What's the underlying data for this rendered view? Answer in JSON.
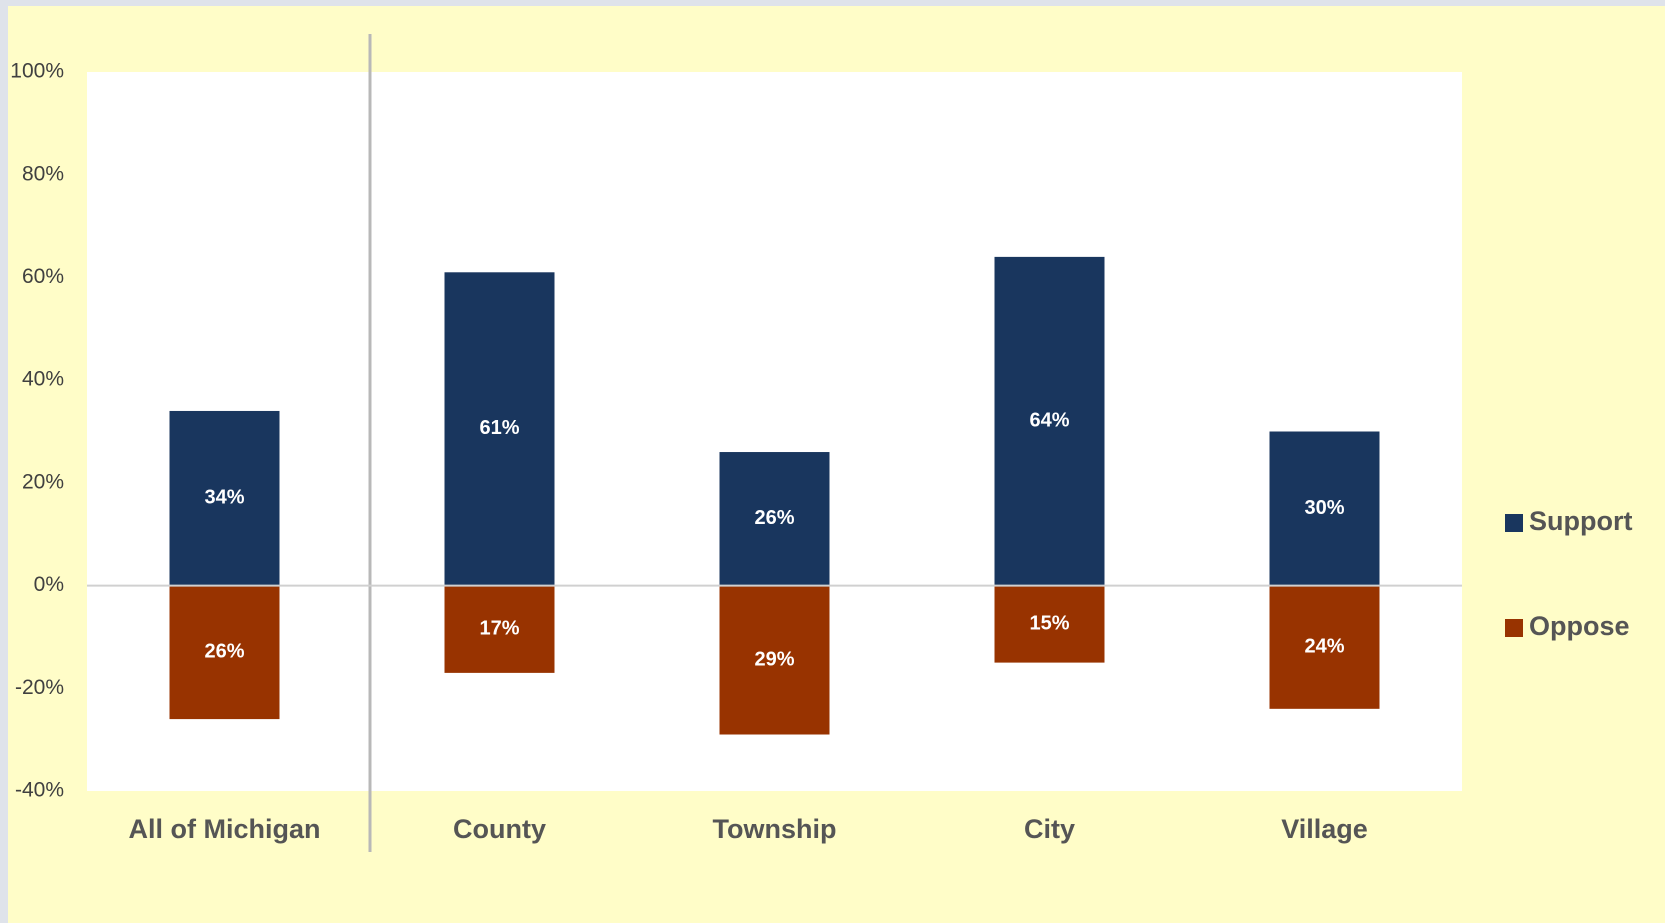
{
  "chart_data": {
    "type": "bar",
    "categories": [
      "All of Michigan",
      "County",
      "Township",
      "City",
      "Village"
    ],
    "series": [
      {
        "name": "Support",
        "color": "#19365e",
        "values": [
          34,
          61,
          26,
          64,
          30
        ],
        "value_labels": [
          "34%",
          "61%",
          "26%",
          "64%",
          "30%"
        ]
      },
      {
        "name": "Oppose",
        "color": "#983300",
        "values": [
          -26,
          -17,
          -29,
          -15,
          -24
        ],
        "value_labels": [
          "26%",
          "17%",
          "29%",
          "15%",
          "24%"
        ]
      }
    ],
    "ylim": [
      -40,
      100
    ],
    "yticks": [
      {
        "value": -40,
        "label": "-40%"
      },
      {
        "value": -20,
        "label": "-20%"
      },
      {
        "value": 0,
        "label": "0%"
      },
      {
        "value": 20,
        "label": "20%"
      },
      {
        "value": 40,
        "label": "40%"
      },
      {
        "value": 60,
        "label": "60%"
      },
      {
        "value": 80,
        "label": "80%"
      },
      {
        "value": 100,
        "label": "100%"
      }
    ],
    "grid": false,
    "legend": "right"
  }
}
